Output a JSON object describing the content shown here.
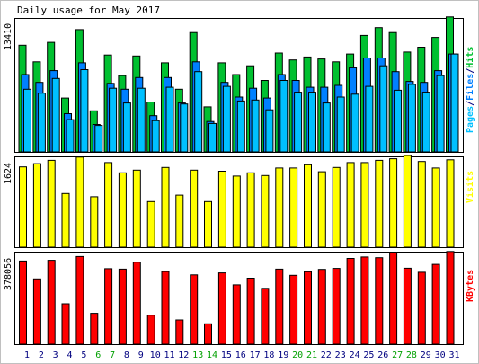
{
  "title": "Daily usage for May 2017",
  "colors": {
    "background": "#ffffff",
    "frame": "#c0c0c0",
    "panel_border": "#000000",
    "hits": "#00c030",
    "files": "#0080ff",
    "pages": "#00c0ff",
    "visits": "#ffff00",
    "kbytes": "#ff0000",
    "weekday_label": "#000080",
    "weekend_label": "#00a000"
  },
  "chart_data": [
    {
      "type": "bar",
      "panel": "hits",
      "max_label": "13410",
      "legend": [
        {
          "text": "Pages",
          "color": "#00c0ff"
        },
        {
          "text": "/",
          "color": "#000080"
        },
        {
          "text": "Files",
          "color": "#0080ff"
        },
        {
          "text": "/",
          "color": "#000080"
        },
        {
          "text": "Hits",
          "color": "#00c030"
        }
      ],
      "ymax": 13410,
      "categories": [
        "1",
        "2",
        "3",
        "4",
        "5",
        "6",
        "7",
        "8",
        "9",
        "10",
        "11",
        "12",
        "13",
        "14",
        "15",
        "16",
        "17",
        "18",
        "19",
        "20",
        "21",
        "22",
        "23",
        "24",
        "25",
        "26",
        "27",
        "28",
        "29",
        "30",
        "31"
      ],
      "series": [
        {
          "name": "Hits",
          "values": [
            10900,
            9200,
            11200,
            5500,
            12500,
            4200,
            9900,
            7800,
            9800,
            5100,
            9100,
            6400,
            12200,
            4600,
            9100,
            7900,
            8800,
            7300,
            10100,
            9400,
            9700,
            9500,
            9200,
            10000,
            11900,
            12700,
            12200,
            10200,
            10700,
            11700,
            13800
          ]
        },
        {
          "name": "Files",
          "values": [
            7900,
            7100,
            8300,
            3900,
            9100,
            2800,
            7000,
            6400,
            7600,
            3700,
            7600,
            5000,
            9200,
            3100,
            7100,
            5600,
            6500,
            5500,
            7900,
            7300,
            6600,
            6600,
            6800,
            8600,
            9600,
            9600,
            8200,
            7200,
            7100,
            8300,
            10000
          ]
        },
        {
          "name": "Pages",
          "values": [
            6400,
            6000,
            7500,
            3300,
            8400,
            2700,
            6500,
            5000,
            6500,
            3200,
            6600,
            4900,
            8200,
            2900,
            6700,
            5200,
            5300,
            4300,
            7300,
            6100,
            6100,
            5000,
            5600,
            5900,
            6700,
            8800,
            6300,
            6900,
            6100,
            7800,
            10000
          ]
        }
      ],
      "x_labels_weekend": [
        6,
        7,
        13,
        14,
        20,
        21,
        27,
        28
      ]
    },
    {
      "type": "bar",
      "panel": "visits",
      "max_label": "1624",
      "legend": [
        {
          "text": "Visits",
          "color": "#ffff00"
        }
      ],
      "ymax": 1624,
      "series": [
        {
          "name": "Visits",
          "values": [
            1480,
            1540,
            1600,
            990,
            1660,
            930,
            1560,
            1370,
            1420,
            840,
            1470,
            960,
            1420,
            840,
            1400,
            1310,
            1370,
            1320,
            1460,
            1460,
            1520,
            1390,
            1470,
            1560,
            1560,
            1600,
            1630,
            1690,
            1580,
            1460,
            1610
          ]
        }
      ]
    },
    {
      "type": "bar",
      "panel": "kbytes",
      "max_label": "378056",
      "legend": [
        {
          "text": "KBytes",
          "color": "#ff0000"
        }
      ],
      "ymax": 378056,
      "series": [
        {
          "name": "KBytes",
          "values": [
            350000,
            275000,
            353000,
            170000,
            369000,
            130000,
            318000,
            316000,
            345000,
            122000,
            306000,
            102000,
            292000,
            86000,
            300000,
            250000,
            278000,
            235000,
            316000,
            290000,
            305000,
            315000,
            319000,
            361000,
            367000,
            364000,
            386000,
            320000,
            303000,
            336000,
            390000
          ]
        }
      ]
    }
  ]
}
